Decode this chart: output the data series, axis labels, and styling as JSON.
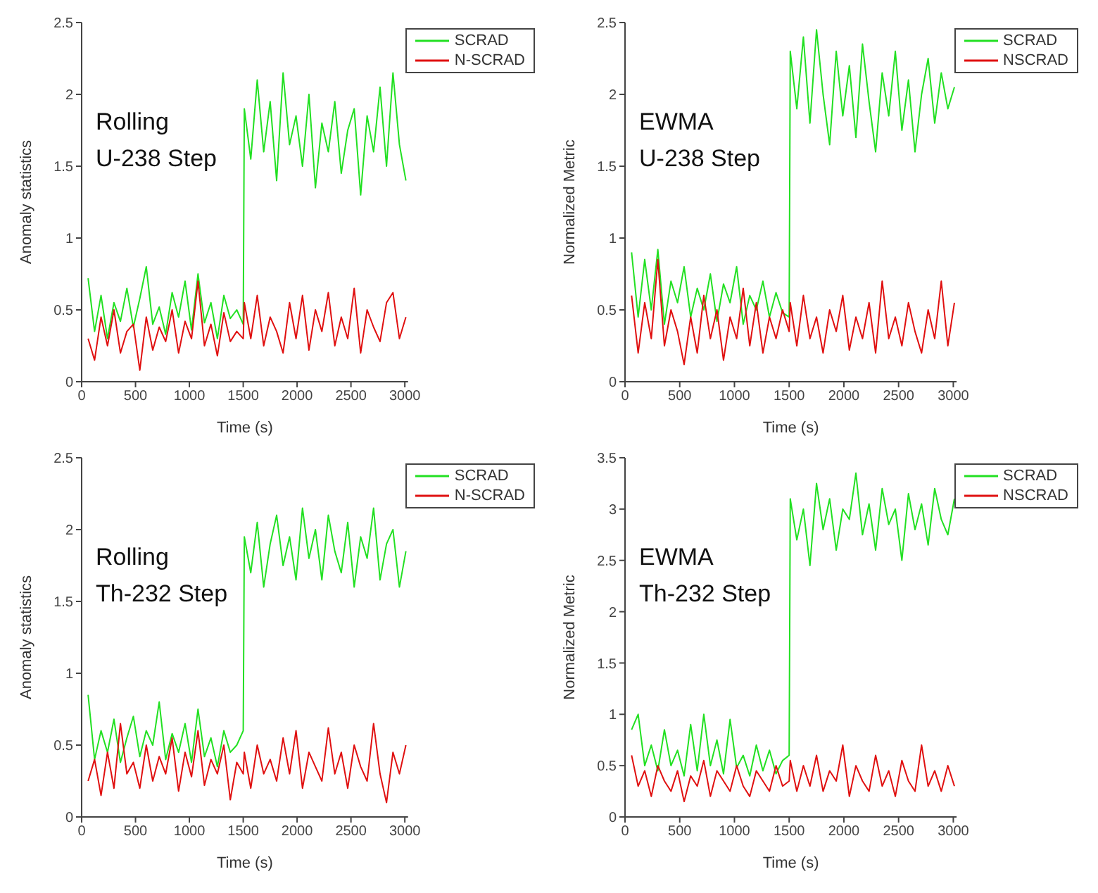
{
  "chart_data": [
    {
      "type": "line",
      "xlabel": "Time (s)",
      "ylabel": "Anomaly statistics",
      "annotations": [
        "Rolling",
        "U-238 Step"
      ],
      "xlim": [
        0,
        3030
      ],
      "xticks": [
        0,
        500,
        1000,
        1500,
        2000,
        2500,
        3000
      ],
      "ylim": [
        0,
        2.5
      ],
      "yticks": [
        0,
        0.5,
        1,
        1.5,
        2,
        2.5
      ],
      "legend": "top right",
      "grid": false,
      "marker": "none",
      "x": [
        60,
        120,
        180,
        240,
        300,
        360,
        420,
        480,
        540,
        600,
        660,
        720,
        780,
        840,
        900,
        960,
        1020,
        1080,
        1140,
        1200,
        1260,
        1320,
        1380,
        1440,
        1500,
        1510,
        1570,
        1630,
        1690,
        1750,
        1810,
        1870,
        1930,
        1990,
        2050,
        2110,
        2170,
        2230,
        2290,
        2350,
        2410,
        2470,
        2530,
        2590,
        2650,
        2710,
        2770,
        2830,
        2890,
        2950,
        3010
      ],
      "series": [
        {
          "name": "SCRAD",
          "color": "#22e022",
          "values": [
            0.72,
            0.35,
            0.6,
            0.3,
            0.55,
            0.42,
            0.65,
            0.38,
            0.58,
            0.8,
            0.4,
            0.52,
            0.33,
            0.62,
            0.45,
            0.7,
            0.36,
            0.75,
            0.41,
            0.55,
            0.3,
            0.6,
            0.44,
            0.5,
            0.4,
            1.9,
            1.55,
            2.1,
            1.6,
            1.95,
            1.4,
            2.15,
            1.65,
            1.85,
            1.5,
            2.0,
            1.35,
            1.8,
            1.6,
            1.95,
            1.45,
            1.75,
            1.9,
            1.3,
            1.85,
            1.6,
            2.05,
            1.5,
            2.15,
            1.65,
            1.4
          ]
        },
        {
          "name": "N-SCRAD",
          "color": "#e01010",
          "values": [
            0.3,
            0.15,
            0.45,
            0.25,
            0.5,
            0.2,
            0.35,
            0.4,
            0.08,
            0.45,
            0.22,
            0.38,
            0.28,
            0.5,
            0.2,
            0.42,
            0.3,
            0.7,
            0.25,
            0.4,
            0.18,
            0.48,
            0.28,
            0.35,
            0.3,
            0.55,
            0.3,
            0.6,
            0.25,
            0.45,
            0.35,
            0.2,
            0.55,
            0.3,
            0.6,
            0.22,
            0.5,
            0.35,
            0.62,
            0.25,
            0.45,
            0.3,
            0.65,
            0.2,
            0.5,
            0.38,
            0.28,
            0.55,
            0.62,
            0.3,
            0.45
          ]
        }
      ]
    },
    {
      "type": "line",
      "xlabel": "Time (s)",
      "ylabel": "Normalized Metric",
      "annotations": [
        "EWMA",
        "U-238 Step"
      ],
      "xlim": [
        0,
        3030
      ],
      "xticks": [
        0,
        500,
        1000,
        1500,
        2000,
        2500,
        3000
      ],
      "ylim": [
        0,
        2.5
      ],
      "yticks": [
        0,
        0.5,
        1,
        1.5,
        2,
        2.5
      ],
      "legend": "top right",
      "grid": false,
      "marker": "none",
      "x": [
        60,
        120,
        180,
        240,
        300,
        360,
        420,
        480,
        540,
        600,
        660,
        720,
        780,
        840,
        900,
        960,
        1020,
        1080,
        1140,
        1200,
        1260,
        1320,
        1380,
        1440,
        1500,
        1510,
        1570,
        1630,
        1690,
        1750,
        1810,
        1870,
        1930,
        1990,
        2050,
        2110,
        2170,
        2230,
        2290,
        2350,
        2410,
        2470,
        2530,
        2590,
        2650,
        2710,
        2770,
        2830,
        2890,
        2950,
        3010
      ],
      "series": [
        {
          "name": "SCRAD",
          "color": "#22e022",
          "values": [
            0.9,
            0.45,
            0.85,
            0.5,
            0.92,
            0.4,
            0.7,
            0.55,
            0.8,
            0.45,
            0.65,
            0.5,
            0.75,
            0.42,
            0.68,
            0.55,
            0.8,
            0.4,
            0.6,
            0.5,
            0.7,
            0.45,
            0.62,
            0.48,
            0.45,
            2.3,
            1.9,
            2.4,
            1.8,
            2.45,
            2.0,
            1.65,
            2.3,
            1.85,
            2.2,
            1.7,
            2.35,
            1.95,
            1.6,
            2.15,
            1.85,
            2.3,
            1.75,
            2.1,
            1.6,
            2.0,
            2.25,
            1.8,
            2.15,
            1.9,
            2.05
          ]
        },
        {
          "name": "NSCRAD",
          "color": "#e01010",
          "values": [
            0.6,
            0.2,
            0.55,
            0.3,
            0.85,
            0.25,
            0.5,
            0.35,
            0.12,
            0.45,
            0.2,
            0.6,
            0.3,
            0.5,
            0.15,
            0.45,
            0.3,
            0.65,
            0.25,
            0.55,
            0.2,
            0.45,
            0.3,
            0.5,
            0.35,
            0.55,
            0.25,
            0.6,
            0.3,
            0.45,
            0.2,
            0.5,
            0.35,
            0.6,
            0.22,
            0.45,
            0.3,
            0.55,
            0.2,
            0.7,
            0.3,
            0.45,
            0.25,
            0.55,
            0.35,
            0.2,
            0.5,
            0.3,
            0.7,
            0.25,
            0.55
          ]
        }
      ]
    },
    {
      "type": "line",
      "xlabel": "Time (s)",
      "ylabel": "Anomaly statistics",
      "annotations": [
        "Rolling",
        "Th-232 Step"
      ],
      "xlim": [
        0,
        3030
      ],
      "xticks": [
        0,
        500,
        1000,
        1500,
        2000,
        2500,
        3000
      ],
      "ylim": [
        0,
        2.5
      ],
      "yticks": [
        0,
        0.5,
        1,
        1.5,
        2,
        2.5
      ],
      "legend": "top right",
      "grid": false,
      "marker": "none",
      "x": [
        60,
        120,
        180,
        240,
        300,
        360,
        420,
        480,
        540,
        600,
        660,
        720,
        780,
        840,
        900,
        960,
        1020,
        1080,
        1140,
        1200,
        1260,
        1320,
        1380,
        1440,
        1500,
        1510,
        1570,
        1630,
        1690,
        1750,
        1810,
        1870,
        1930,
        1990,
        2050,
        2110,
        2170,
        2230,
        2290,
        2350,
        2410,
        2470,
        2530,
        2590,
        2650,
        2710,
        2770,
        2830,
        2890,
        2950,
        3010
      ],
      "series": [
        {
          "name": "SCRAD",
          "color": "#22e022",
          "values": [
            0.85,
            0.4,
            0.6,
            0.45,
            0.68,
            0.38,
            0.55,
            0.7,
            0.42,
            0.6,
            0.5,
            0.8,
            0.4,
            0.58,
            0.45,
            0.65,
            0.38,
            0.75,
            0.42,
            0.55,
            0.35,
            0.6,
            0.45,
            0.5,
            0.6,
            1.95,
            1.7,
            2.05,
            1.6,
            1.9,
            2.1,
            1.75,
            1.95,
            1.65,
            2.15,
            1.8,
            2.0,
            1.65,
            2.1,
            1.85,
            1.7,
            2.05,
            1.6,
            1.95,
            1.8,
            2.15,
            1.65,
            1.9,
            2.0,
            1.6,
            1.85
          ]
        },
        {
          "name": "N-SCRAD",
          "color": "#e01010",
          "values": [
            0.25,
            0.4,
            0.15,
            0.45,
            0.2,
            0.65,
            0.3,
            0.38,
            0.2,
            0.5,
            0.25,
            0.42,
            0.3,
            0.55,
            0.18,
            0.45,
            0.28,
            0.6,
            0.22,
            0.4,
            0.3,
            0.5,
            0.12,
            0.38,
            0.3,
            0.45,
            0.2,
            0.5,
            0.3,
            0.4,
            0.25,
            0.55,
            0.3,
            0.6,
            0.2,
            0.45,
            0.35,
            0.25,
            0.62,
            0.3,
            0.45,
            0.2,
            0.5,
            0.35,
            0.25,
            0.65,
            0.3,
            0.1,
            0.45,
            0.3,
            0.5
          ]
        }
      ]
    },
    {
      "type": "line",
      "xlabel": "Time (s)",
      "ylabel": "Normalized Metric",
      "annotations": [
        "EWMA",
        "Th-232 Step"
      ],
      "xlim": [
        0,
        3030
      ],
      "xticks": [
        0,
        500,
        1000,
        1500,
        2000,
        2500,
        3000
      ],
      "ylim": [
        0,
        3.5
      ],
      "yticks": [
        0,
        0.5,
        1,
        1.5,
        2,
        2.5,
        3,
        3.5
      ],
      "legend": "top right",
      "grid": false,
      "marker": "none",
      "x": [
        60,
        120,
        180,
        240,
        300,
        360,
        420,
        480,
        540,
        600,
        660,
        720,
        780,
        840,
        900,
        960,
        1020,
        1080,
        1140,
        1200,
        1260,
        1320,
        1380,
        1440,
        1500,
        1510,
        1570,
        1630,
        1690,
        1750,
        1810,
        1870,
        1930,
        1990,
        2050,
        2110,
        2170,
        2230,
        2290,
        2350,
        2410,
        2470,
        2530,
        2590,
        2650,
        2710,
        2770,
        2830,
        2890,
        2950,
        3010
      ],
      "series": [
        {
          "name": "SCRAD",
          "color": "#22e022",
          "values": [
            0.85,
            1.0,
            0.5,
            0.7,
            0.45,
            0.85,
            0.5,
            0.65,
            0.4,
            0.9,
            0.45,
            1.0,
            0.5,
            0.75,
            0.42,
            0.95,
            0.48,
            0.6,
            0.4,
            0.7,
            0.45,
            0.65,
            0.42,
            0.55,
            0.6,
            3.1,
            2.7,
            3.0,
            2.45,
            3.25,
            2.8,
            3.1,
            2.6,
            3.0,
            2.9,
            3.35,
            2.75,
            3.05,
            2.6,
            3.2,
            2.85,
            3.0,
            2.5,
            3.15,
            2.8,
            3.05,
            2.65,
            3.2,
            2.9,
            2.75,
            3.1
          ]
        },
        {
          "name": "NSCRAD",
          "color": "#e01010",
          "values": [
            0.6,
            0.3,
            0.45,
            0.2,
            0.5,
            0.35,
            0.25,
            0.45,
            0.15,
            0.4,
            0.3,
            0.55,
            0.2,
            0.45,
            0.35,
            0.25,
            0.5,
            0.3,
            0.2,
            0.45,
            0.35,
            0.25,
            0.5,
            0.3,
            0.35,
            0.55,
            0.25,
            0.5,
            0.3,
            0.6,
            0.25,
            0.45,
            0.35,
            0.7,
            0.2,
            0.5,
            0.35,
            0.25,
            0.6,
            0.3,
            0.45,
            0.2,
            0.55,
            0.35,
            0.25,
            0.7,
            0.3,
            0.45,
            0.25,
            0.5,
            0.3
          ]
        }
      ]
    }
  ]
}
